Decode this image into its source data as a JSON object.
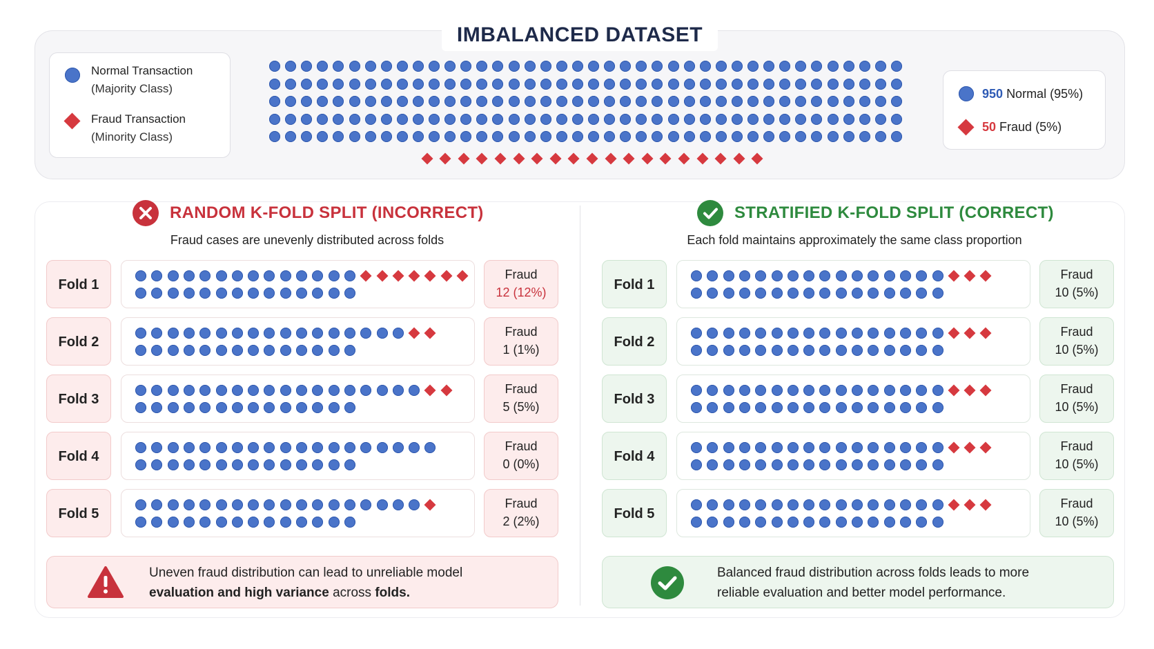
{
  "dataset": {
    "title": "IMBALANCED DATASET",
    "legend": {
      "normal_line1": "Normal Transaction",
      "normal_line2": "(Majority Class)",
      "fraud_line1": "Fraud Transaction",
      "fraud_line2": "(Minority Class)"
    },
    "summary": {
      "normal_count": "950",
      "normal_label": "Normal (95%)",
      "fraud_count": "50",
      "fraud_label": "Fraud (5%)"
    },
    "grid": {
      "normal_rows": 5,
      "normal_cols": 40,
      "fraud_markers": 19
    },
    "colors": {
      "normal": "#4a74c9",
      "fraud": "#d6393f",
      "bad": "#c8323c",
      "good": "#2e8a3e"
    }
  },
  "random": {
    "title": "RANDOM K-FOLD SPLIT (INCORRECT)",
    "subtitle": "Fraud cases are unevenly distributed across folds",
    "folds": [
      {
        "label": "Fold 1",
        "fraud_label": "Fraud",
        "fraud_value": "12 (12%)",
        "row1_dots": 14,
        "row1_fraud": 7,
        "row2_dots": 14
      },
      {
        "label": "Fold 2",
        "fraud_label": "Fraud",
        "fraud_value": "1 (1%)",
        "row1_dots": 17,
        "row1_fraud": 2,
        "row2_dots": 14
      },
      {
        "label": "Fold 3",
        "fraud_label": "Fraud",
        "fraud_value": "5 (5%)",
        "row1_dots": 18,
        "row1_fraud": 2,
        "row2_dots": 14
      },
      {
        "label": "Fold 4",
        "fraud_label": "Fraud",
        "fraud_value": "0 (0%)",
        "row1_dots": 19,
        "row1_fraud": 0,
        "row2_dots": 14
      },
      {
        "label": "Fold 5",
        "fraud_label": "Fraud",
        "fraud_value": "2 (2%)",
        "row1_dots": 18,
        "row1_fraud": 1,
        "row2_dots": 14
      }
    ],
    "note_line1": "Uneven fraud distribution can lead to unreliable model",
    "note_line2_bold1": "evaluation and high variance",
    "note_line2_mid": " across ",
    "note_line2_bold2": "folds."
  },
  "stratified": {
    "title": "STRATIFIED K-FOLD SPLIT (CORRECT)",
    "subtitle": "Each fold maintains approximately the same class proportion",
    "folds": [
      {
        "label": "Fold 1",
        "fraud_label": "Fraud",
        "fraud_value": "10 (5%)",
        "row1_dots": 16,
        "row1_fraud": 3,
        "row2_dots": 16
      },
      {
        "label": "Fold 2",
        "fraud_label": "Fraud",
        "fraud_value": "10 (5%)",
        "row1_dots": 16,
        "row1_fraud": 3,
        "row2_dots": 16
      },
      {
        "label": "Fold 3",
        "fraud_label": "Fraud",
        "fraud_value": "10 (5%)",
        "row1_dots": 16,
        "row1_fraud": 3,
        "row2_dots": 16
      },
      {
        "label": "Fold 4",
        "fraud_label": "Fraud",
        "fraud_value": "10 (5%)",
        "row1_dots": 16,
        "row1_fraud": 3,
        "row2_dots": 16
      },
      {
        "label": "Fold 5",
        "fraud_label": "Fraud",
        "fraud_value": "10 (5%)",
        "row1_dots": 16,
        "row1_fraud": 3,
        "row2_dots": 16
      }
    ],
    "note_line1": "Balanced fraud distribution across folds leads to more",
    "note_line2": "reliable evaluation and better model performance."
  }
}
